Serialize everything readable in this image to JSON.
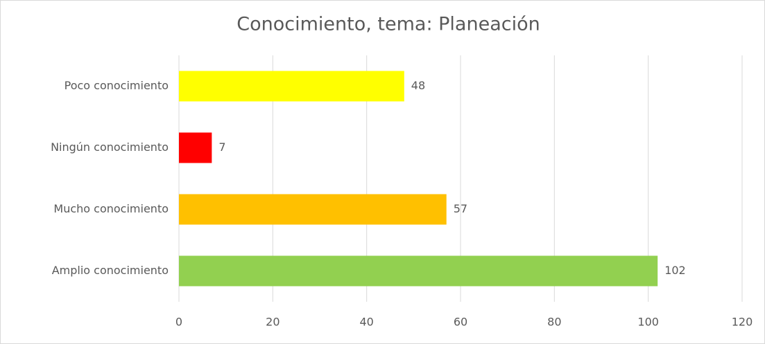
{
  "chart_data": {
    "type": "bar",
    "orientation": "horizontal",
    "title": "Conocimiento, tema: Planeación",
    "categories": [
      "Poco conocimiento",
      "Ningún conocimiento",
      "Mucho conocimiento",
      "Amplio conocimiento"
    ],
    "values": [
      48,
      7,
      57,
      102
    ],
    "colors": [
      "#ffff00",
      "#ff0000",
      "#ffc000",
      "#92d050"
    ],
    "xlim": [
      0,
      120
    ],
    "xticks": [
      0,
      20,
      40,
      60,
      80,
      100,
      120
    ],
    "grid": true
  }
}
